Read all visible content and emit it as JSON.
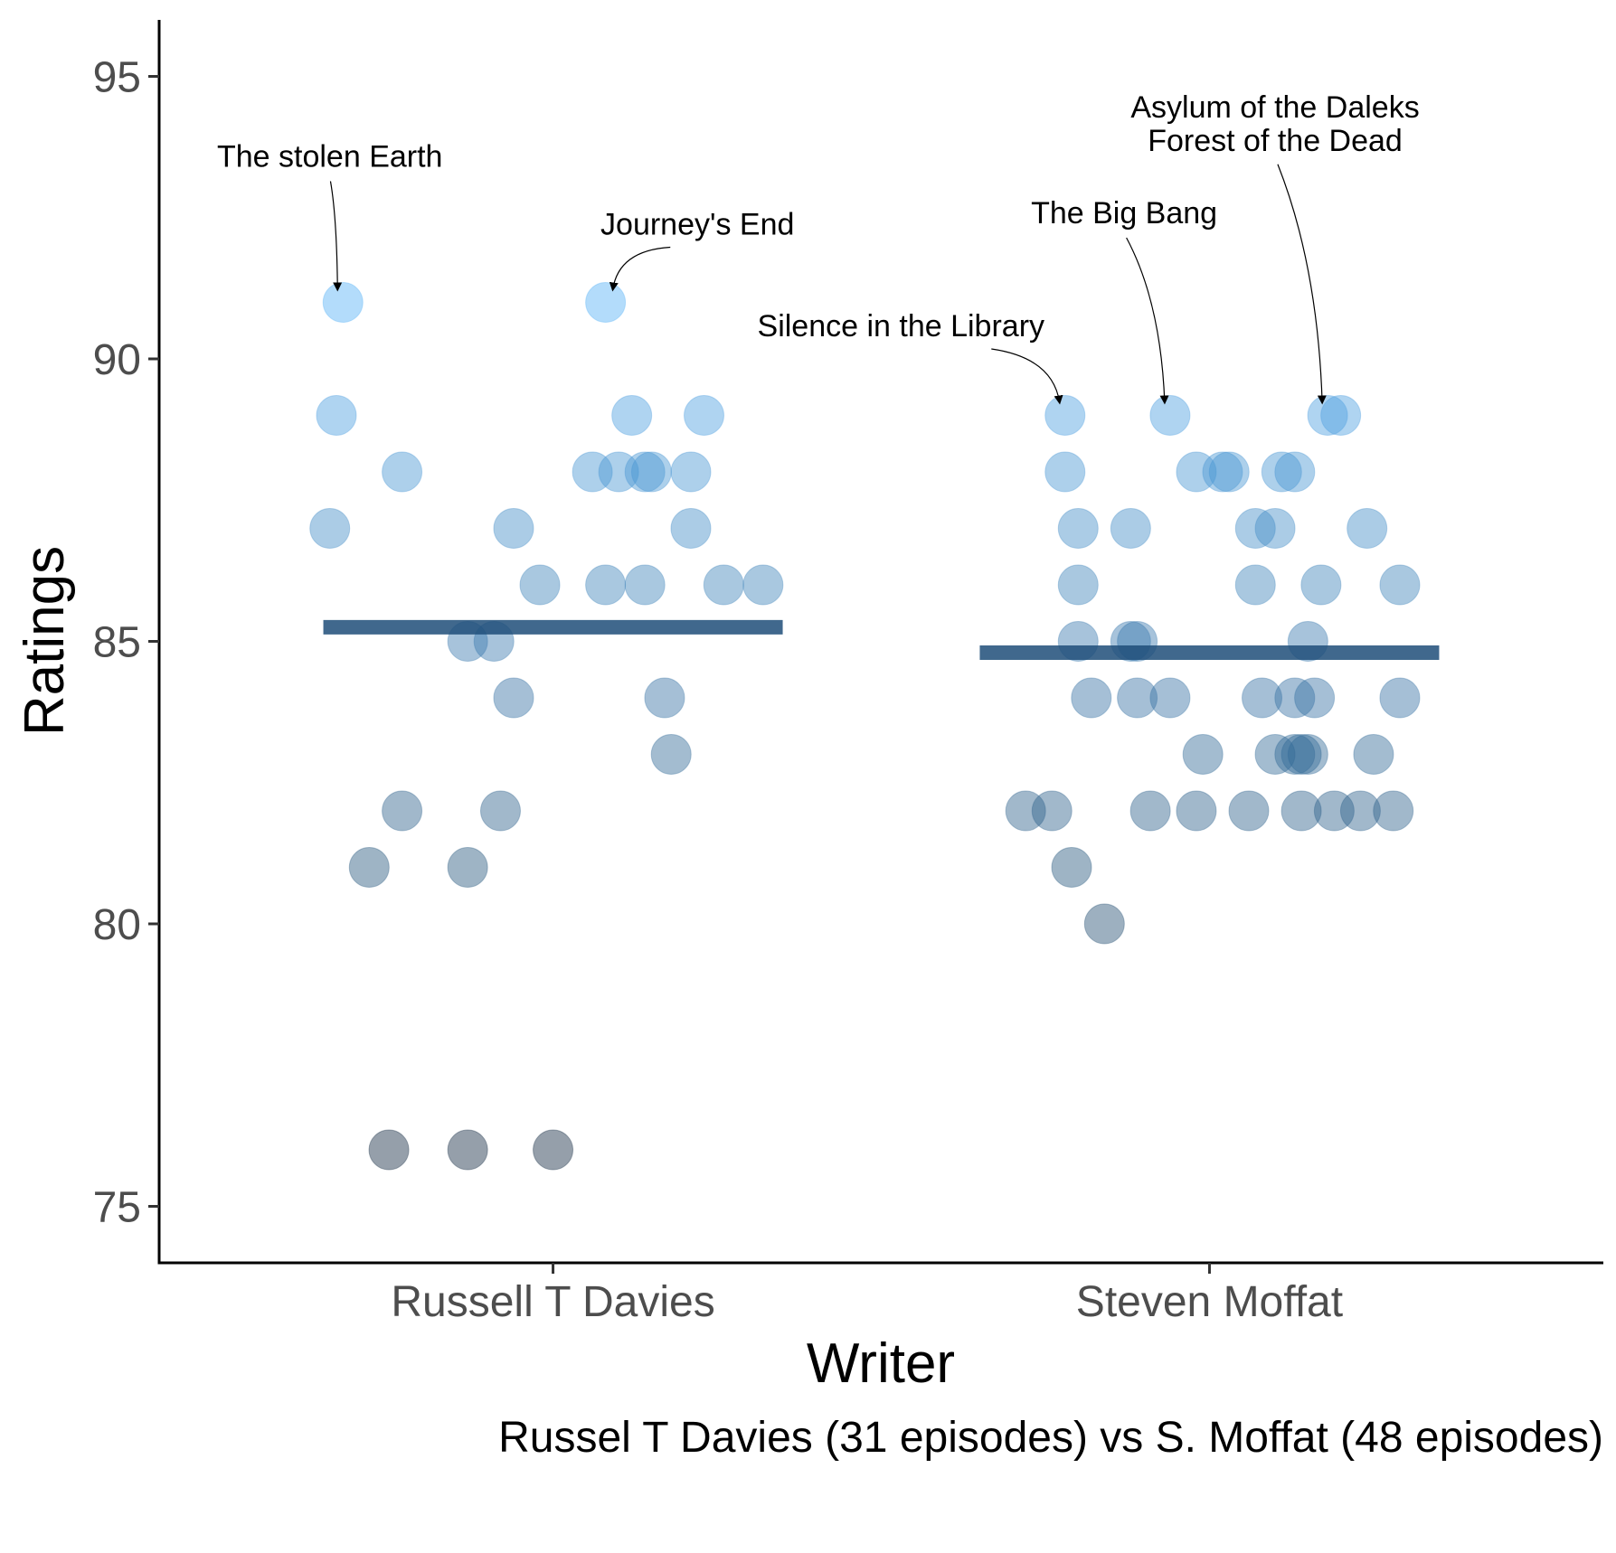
{
  "chart_data": {
    "type": "scatter",
    "xlabel": "Writer",
    "ylabel": "Ratings",
    "caption": "Russel T Davies (31 episodes) vs S. Moffat (48 episodes)",
    "categories": [
      "Russell T Davies",
      "Steven Moffat"
    ],
    "ylim": [
      74,
      96
    ],
    "yticks": [
      75,
      80,
      85,
      90,
      95
    ],
    "grid": false,
    "legend": "none",
    "point_color_scale": {
      "low": "#132B43",
      "high": "#56B1F7",
      "domain": [
        76,
        91
      ]
    },
    "mean_line_color": "#1f4e79",
    "series": [
      {
        "category": "Russell T Davies",
        "mean": 85.25,
        "points": [
          {
            "x": 0.68,
            "y": 91
          },
          {
            "x": 1.08,
            "y": 91
          },
          {
            "x": 0.67,
            "y": 89
          },
          {
            "x": 1.12,
            "y": 89
          },
          {
            "x": 1.23,
            "y": 89
          },
          {
            "x": 0.77,
            "y": 88
          },
          {
            "x": 1.06,
            "y": 88
          },
          {
            "x": 1.1,
            "y": 88
          },
          {
            "x": 1.14,
            "y": 88
          },
          {
            "x": 1.15,
            "y": 88
          },
          {
            "x": 1.21,
            "y": 88
          },
          {
            "x": 0.66,
            "y": 87
          },
          {
            "x": 0.94,
            "y": 87
          },
          {
            "x": 1.21,
            "y": 87
          },
          {
            "x": 0.98,
            "y": 86
          },
          {
            "x": 1.08,
            "y": 86
          },
          {
            "x": 1.14,
            "y": 86
          },
          {
            "x": 1.26,
            "y": 86
          },
          {
            "x": 1.32,
            "y": 86
          },
          {
            "x": 0.87,
            "y": 85
          },
          {
            "x": 0.91,
            "y": 85
          },
          {
            "x": 0.94,
            "y": 84
          },
          {
            "x": 1.17,
            "y": 84
          },
          {
            "x": 1.18,
            "y": 83
          },
          {
            "x": 0.77,
            "y": 82
          },
          {
            "x": 0.92,
            "y": 82
          },
          {
            "x": 0.72,
            "y": 81
          },
          {
            "x": 0.87,
            "y": 81
          },
          {
            "x": 0.75,
            "y": 76
          },
          {
            "x": 0.87,
            "y": 76
          },
          {
            "x": 1.0,
            "y": 76
          }
        ]
      },
      {
        "category": "Steven Moffat",
        "mean": 84.8,
        "points": [
          {
            "x": 1.78,
            "y": 89
          },
          {
            "x": 1.94,
            "y": 89
          },
          {
            "x": 2.18,
            "y": 89
          },
          {
            "x": 2.2,
            "y": 89
          },
          {
            "x": 1.78,
            "y": 88
          },
          {
            "x": 1.98,
            "y": 88
          },
          {
            "x": 2.02,
            "y": 88
          },
          {
            "x": 2.03,
            "y": 88
          },
          {
            "x": 2.11,
            "y": 88
          },
          {
            "x": 2.13,
            "y": 88
          },
          {
            "x": 1.8,
            "y": 87
          },
          {
            "x": 1.88,
            "y": 87
          },
          {
            "x": 2.07,
            "y": 87
          },
          {
            "x": 2.1,
            "y": 87
          },
          {
            "x": 2.24,
            "y": 87
          },
          {
            "x": 1.8,
            "y": 86
          },
          {
            "x": 2.07,
            "y": 86
          },
          {
            "x": 2.17,
            "y": 86
          },
          {
            "x": 2.29,
            "y": 86
          },
          {
            "x": 1.8,
            "y": 85
          },
          {
            "x": 1.88,
            "y": 85
          },
          {
            "x": 1.89,
            "y": 85
          },
          {
            "x": 2.15,
            "y": 85
          },
          {
            "x": 1.82,
            "y": 84
          },
          {
            "x": 1.89,
            "y": 84
          },
          {
            "x": 1.94,
            "y": 84
          },
          {
            "x": 2.08,
            "y": 84
          },
          {
            "x": 2.13,
            "y": 84
          },
          {
            "x": 2.16,
            "y": 84
          },
          {
            "x": 2.29,
            "y": 84
          },
          {
            "x": 1.99,
            "y": 83
          },
          {
            "x": 2.1,
            "y": 83
          },
          {
            "x": 2.13,
            "y": 83
          },
          {
            "x": 2.14,
            "y": 83
          },
          {
            "x": 2.15,
            "y": 83
          },
          {
            "x": 2.25,
            "y": 83
          },
          {
            "x": 1.72,
            "y": 82
          },
          {
            "x": 1.76,
            "y": 82
          },
          {
            "x": 1.91,
            "y": 82
          },
          {
            "x": 1.98,
            "y": 82
          },
          {
            "x": 2.06,
            "y": 82
          },
          {
            "x": 2.14,
            "y": 82
          },
          {
            "x": 2.19,
            "y": 82
          },
          {
            "x": 2.23,
            "y": 82
          },
          {
            "x": 2.28,
            "y": 82
          },
          {
            "x": 1.79,
            "y": 81
          },
          {
            "x": 1.84,
            "y": 80
          }
        ]
      }
    ],
    "annotations": [
      {
        "label": "The stolen Earth",
        "point": {
          "x": 0.68,
          "y": 91
        },
        "text_pos": {
          "x": 0.66,
          "y": 93.4
        }
      },
      {
        "label": "Journey's End",
        "point": {
          "x": 1.08,
          "y": 91
        },
        "text_pos": {
          "x": 1.22,
          "y": 92.2
        }
      },
      {
        "label": "Silence in the Library",
        "point": {
          "x": 1.78,
          "y": 89
        },
        "text_pos": {
          "x": 1.53,
          "y": 90.4
        }
      },
      {
        "label": "The Big Bang",
        "point": {
          "x": 1.94,
          "y": 89
        },
        "text_pos": {
          "x": 1.87,
          "y": 92.4
        }
      },
      {
        "label": "Asylum of the Daleks\nForest of the Dead",
        "point": {
          "x": 2.18,
          "y": 89
        },
        "text_pos": {
          "x": 2.1,
          "y": 93.7
        }
      }
    ]
  }
}
